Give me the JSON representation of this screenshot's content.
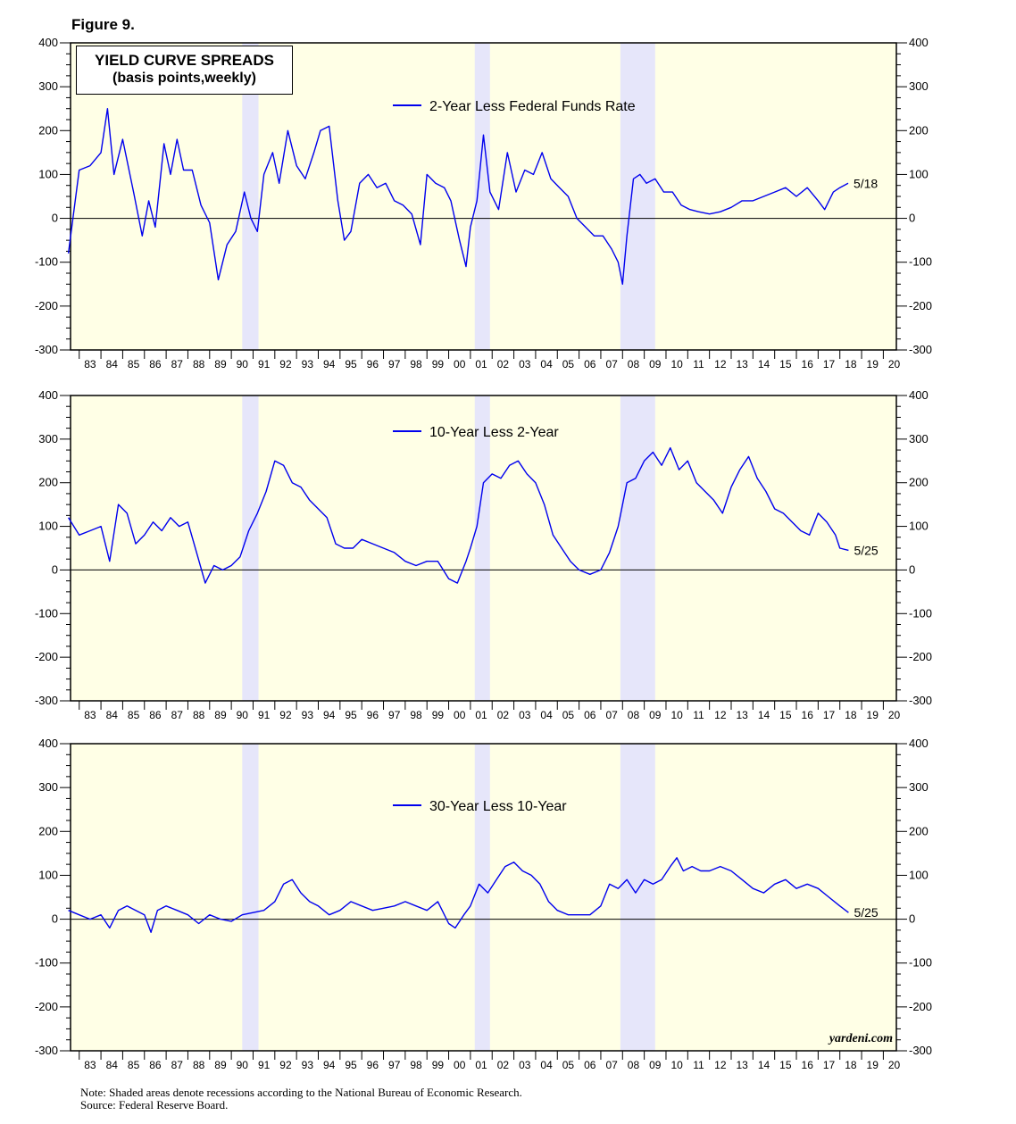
{
  "figure_label": "Figure 9.",
  "title": {
    "line1": "YIELD CURVE SPREADS",
    "line2": "(basis points,weekly)"
  },
  "notes": {
    "line1": "Note: Shaded areas denote recessions according to the National Bureau of Economic Research.",
    "line2": "Source: Federal Reserve Board."
  },
  "credit": "yardeni.com",
  "colors": {
    "plot_bg": "#ffffe6",
    "recession": "#e6e6fa",
    "line": "#0000ee",
    "axis": "#000000"
  },
  "chart_data": [
    {
      "type": "line",
      "series": [
        {
          "name": "2-Year Less Federal Funds Rate",
          "x": [
            1982.5,
            1983.0,
            1983.5,
            1984.0,
            1984.3,
            1984.6,
            1985.0,
            1985.5,
            1985.9,
            1986.2,
            1986.5,
            1986.9,
            1987.2,
            1987.5,
            1987.8,
            1988.2,
            1988.6,
            1989.0,
            1989.4,
            1989.8,
            1990.2,
            1990.6,
            1990.9,
            1991.2,
            1991.5,
            1991.9,
            1992.2,
            1992.6,
            1993.0,
            1993.4,
            1993.8,
            1994.1,
            1994.5,
            1994.9,
            1995.2,
            1995.5,
            1995.9,
            1996.3,
            1996.7,
            1997.1,
            1997.5,
            1997.9,
            1998.3,
            1998.7,
            1999.0,
            1999.4,
            1999.8,
            2000.1,
            2000.5,
            2000.8,
            2001.0,
            2001.3,
            2001.6,
            2001.9,
            2002.3,
            2002.7,
            2003.1,
            2003.5,
            2003.9,
            2004.3,
            2004.7,
            2005.1,
            2005.5,
            2005.9,
            2006.3,
            2006.7,
            2007.1,
            2007.5,
            2007.8,
            2008.0,
            2008.2,
            2008.5,
            2008.8,
            2009.1,
            2009.5,
            2009.9,
            2010.3,
            2010.7,
            2011.1,
            2011.5,
            2012.0,
            2012.5,
            2013.0,
            2013.5,
            2014.0,
            2014.5,
            2015.0,
            2015.5,
            2016.0,
            2016.5,
            2017.0,
            2017.3,
            2017.7,
            2018.0,
            2018.38
          ],
          "values": [
            -80,
            110,
            120,
            150,
            250,
            100,
            180,
            60,
            -40,
            40,
            -20,
            170,
            100,
            180,
            110,
            110,
            30,
            -10,
            -140,
            -60,
            -30,
            60,
            0,
            -30,
            100,
            150,
            80,
            200,
            120,
            90,
            150,
            200,
            210,
            40,
            -50,
            -30,
            80,
            100,
            70,
            80,
            40,
            30,
            10,
            -60,
            100,
            80,
            70,
            40,
            -50,
            -110,
            -20,
            40,
            190,
            60,
            20,
            150,
            60,
            110,
            100,
            150,
            90,
            70,
            50,
            0,
            -20,
            -40,
            -40,
            -70,
            -100,
            -150,
            -40,
            90,
            100,
            80,
            90,
            60,
            60,
            30,
            20,
            15,
            10,
            15,
            25,
            40,
            40,
            50,
            60,
            70,
            50,
            70,
            40,
            20,
            60,
            70,
            80
          ]
        }
      ],
      "ylim": [
        -300,
        400
      ],
      "xlim": [
        1982.6,
        2020.6
      ],
      "xticks": [
        "83",
        "84",
        "85",
        "86",
        "87",
        "88",
        "89",
        "90",
        "91",
        "92",
        "93",
        "94",
        "95",
        "96",
        "97",
        "98",
        "99",
        "00",
        "01",
        "02",
        "03",
        "04",
        "05",
        "06",
        "07",
        "08",
        "09",
        "10",
        "11",
        "12",
        "13",
        "14",
        "15",
        "16",
        "17",
        "18",
        "19",
        "20"
      ],
      "yticks": [
        400,
        300,
        200,
        100,
        0,
        -100,
        -200,
        -300
      ],
      "end_label": "5/18",
      "recessions": [
        [
          1990.5,
          1991.25
        ],
        [
          2001.2,
          2001.9
        ],
        [
          2007.9,
          2009.5
        ]
      ]
    },
    {
      "type": "line",
      "series": [
        {
          "name": "10-Year Less 2-Year",
          "x": [
            1982.5,
            1983.0,
            1983.5,
            1984.0,
            1984.4,
            1984.8,
            1985.2,
            1985.6,
            1986.0,
            1986.4,
            1986.8,
            1987.2,
            1987.6,
            1988.0,
            1988.4,
            1988.8,
            1989.2,
            1989.6,
            1990.0,
            1990.4,
            1990.8,
            1991.2,
            1991.6,
            1992.0,
            1992.4,
            1992.8,
            1993.2,
            1993.6,
            1994.0,
            1994.4,
            1994.8,
            1995.2,
            1995.6,
            1996.0,
            1996.5,
            1997.0,
            1997.5,
            1998.0,
            1998.5,
            1999.0,
            1999.5,
            2000.0,
            2000.4,
            2000.8,
            2001.0,
            2001.3,
            2001.6,
            2002.0,
            2002.4,
            2002.8,
            2003.2,
            2003.6,
            2004.0,
            2004.4,
            2004.8,
            2005.2,
            2005.6,
            2006.0,
            2006.5,
            2007.0,
            2007.4,
            2007.8,
            2008.2,
            2008.6,
            2009.0,
            2009.4,
            2009.8,
            2010.2,
            2010.6,
            2011.0,
            2011.4,
            2011.8,
            2012.2,
            2012.6,
            2013.0,
            2013.4,
            2013.8,
            2014.2,
            2014.6,
            2015.0,
            2015.4,
            2015.8,
            2016.2,
            2016.6,
            2017.0,
            2017.4,
            2017.8,
            2018.0,
            2018.4
          ],
          "values": [
            120,
            80,
            90,
            100,
            20,
            150,
            130,
            60,
            80,
            110,
            90,
            120,
            100,
            110,
            40,
            -30,
            10,
            0,
            10,
            30,
            90,
            130,
            180,
            250,
            240,
            200,
            190,
            160,
            140,
            120,
            60,
            50,
            50,
            70,
            60,
            50,
            40,
            20,
            10,
            20,
            20,
            -20,
            -30,
            20,
            50,
            100,
            200,
            220,
            210,
            240,
            250,
            220,
            200,
            150,
            80,
            50,
            20,
            0,
            -10,
            0,
            40,
            100,
            200,
            210,
            250,
            270,
            240,
            280,
            230,
            250,
            200,
            180,
            160,
            130,
            190,
            230,
            260,
            210,
            180,
            140,
            130,
            110,
            90,
            80,
            130,
            110,
            80,
            50,
            45
          ]
        }
      ],
      "ylim": [
        -300,
        400
      ],
      "xlim": [
        1982.6,
        2020.6
      ],
      "xticks": [
        "83",
        "84",
        "85",
        "86",
        "87",
        "88",
        "89",
        "90",
        "91",
        "92",
        "93",
        "94",
        "95",
        "96",
        "97",
        "98",
        "99",
        "00",
        "01",
        "02",
        "03",
        "04",
        "05",
        "06",
        "07",
        "08",
        "09",
        "10",
        "11",
        "12",
        "13",
        "14",
        "15",
        "16",
        "17",
        "18",
        "19",
        "20"
      ],
      "yticks": [
        400,
        300,
        200,
        100,
        0,
        -100,
        -200,
        -300
      ],
      "end_label": "5/25",
      "recessions": [
        [
          1990.5,
          1991.25
        ],
        [
          2001.2,
          2001.9
        ],
        [
          2007.9,
          2009.5
        ]
      ]
    },
    {
      "type": "line",
      "series": [
        {
          "name": "30-Year Less 10-Year",
          "x": [
            1982.5,
            1983.0,
            1983.5,
            1984.0,
            1984.4,
            1984.8,
            1985.2,
            1985.6,
            1986.0,
            1986.3,
            1986.6,
            1987.0,
            1987.5,
            1988.0,
            1988.5,
            1989.0,
            1989.5,
            1990.0,
            1990.5,
            1991.0,
            1991.5,
            1992.0,
            1992.4,
            1992.8,
            1993.2,
            1993.6,
            1994.0,
            1994.5,
            1995.0,
            1995.5,
            1996.0,
            1996.5,
            1997.0,
            1997.5,
            1998.0,
            1998.5,
            1999.0,
            1999.5,
            2000.0,
            2000.3,
            2000.7,
            2001.0,
            2001.4,
            2001.8,
            2002.2,
            2002.6,
            2003.0,
            2003.4,
            2003.8,
            2004.2,
            2004.6,
            2005.0,
            2005.5,
            2006.0,
            2006.5,
            2007.0,
            2007.4,
            2007.8,
            2008.2,
            2008.6,
            2009.0,
            2009.4,
            2009.8,
            2010.2,
            2010.5,
            2010.8,
            2011.2,
            2011.6,
            2012.0,
            2012.5,
            2013.0,
            2013.5,
            2014.0,
            2014.5,
            2015.0,
            2015.5,
            2016.0,
            2016.5,
            2017.0,
            2017.5,
            2018.0,
            2018.4
          ],
          "values": [
            20,
            10,
            0,
            10,
            -20,
            20,
            30,
            20,
            10,
            -30,
            20,
            30,
            20,
            10,
            -10,
            10,
            0,
            -5,
            10,
            15,
            20,
            40,
            80,
            90,
            60,
            40,
            30,
            10,
            20,
            40,
            30,
            20,
            25,
            30,
            40,
            30,
            20,
            40,
            -10,
            -20,
            10,
            30,
            80,
            60,
            90,
            120,
            130,
            110,
            100,
            80,
            40,
            20,
            10,
            10,
            10,
            30,
            80,
            70,
            90,
            60,
            90,
            80,
            90,
            120,
            140,
            110,
            120,
            110,
            110,
            120,
            110,
            90,
            70,
            60,
            80,
            90,
            70,
            80,
            70,
            50,
            30,
            15
          ]
        }
      ],
      "ylim": [
        -300,
        400
      ],
      "xlim": [
        1982.6,
        2020.6
      ],
      "xticks": [
        "83",
        "84",
        "85",
        "86",
        "87",
        "88",
        "89",
        "90",
        "91",
        "92",
        "93",
        "94",
        "95",
        "96",
        "97",
        "98",
        "99",
        "00",
        "01",
        "02",
        "03",
        "04",
        "05",
        "06",
        "07",
        "08",
        "09",
        "10",
        "11",
        "12",
        "13",
        "14",
        "15",
        "16",
        "17",
        "18",
        "19",
        "20"
      ],
      "yticks": [
        400,
        300,
        200,
        100,
        0,
        -100,
        -200,
        -300
      ],
      "end_label": "5/25",
      "recessions": [
        [
          1990.5,
          1991.25
        ],
        [
          2001.2,
          2001.9
        ],
        [
          2007.9,
          2009.5
        ]
      ]
    }
  ]
}
